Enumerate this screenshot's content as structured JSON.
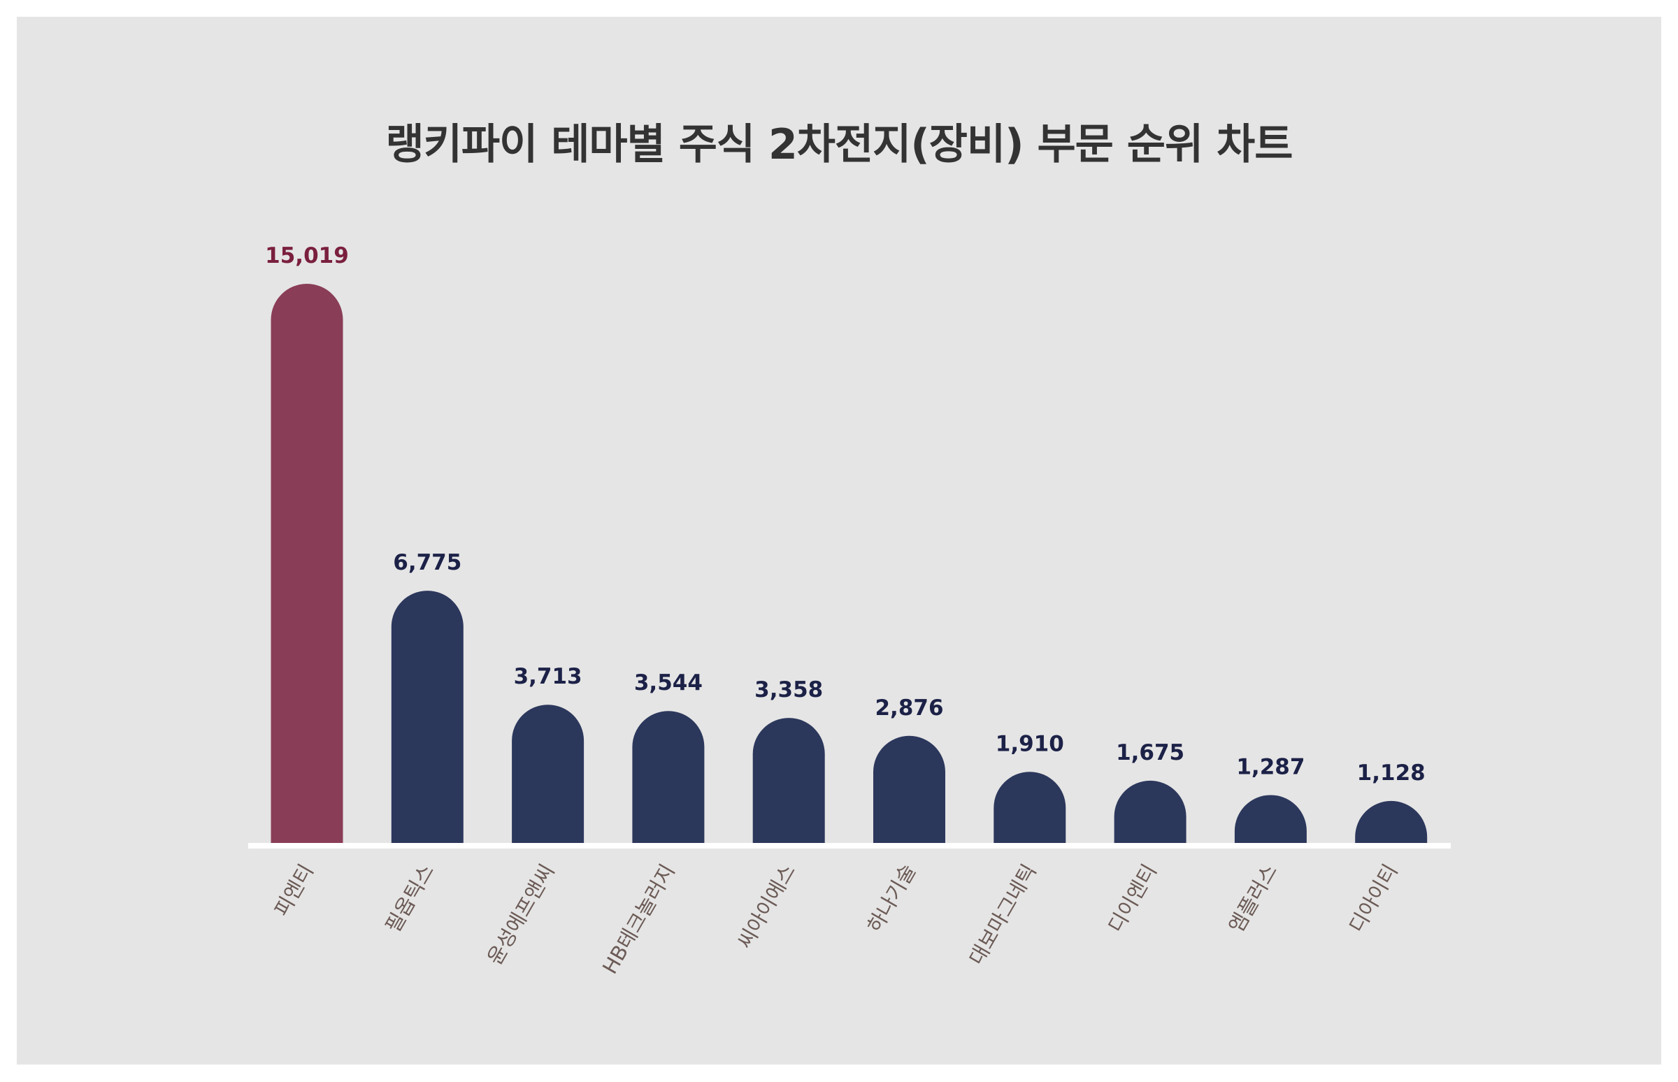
{
  "chart_data": {
    "type": "bar",
    "title": "랭키파이 테마별 주식 2차전지(장비) 부문 순위 차트",
    "categories": [
      "피엔티",
      "필옵틱스",
      "윤성에프앤씨",
      "HB테크놀러지",
      "씨아이에스",
      "하나기술",
      "대보마그네틱",
      "디이엔티",
      "엠플러스",
      "디아이티"
    ],
    "values": [
      15019,
      6775,
      3713,
      3544,
      3358,
      2876,
      1910,
      1675,
      1287,
      1128
    ],
    "value_labels": [
      "15,019",
      "6,775",
      "3,713",
      "3,544",
      "3,358",
      "2,876",
      "1,910",
      "1,675",
      "1,287",
      "1,128"
    ],
    "xlabel": "",
    "ylabel": "",
    "ylim": [
      0,
      15019
    ],
    "grid": false,
    "legend": "none",
    "colors": {
      "highlight_bar": "#8a3d57",
      "bar": "#2c375c",
      "highlight_label": "#7a1f3d",
      "label": "#1c2147",
      "background": "#e5e5e5",
      "baseline": "#ffffff"
    }
  }
}
